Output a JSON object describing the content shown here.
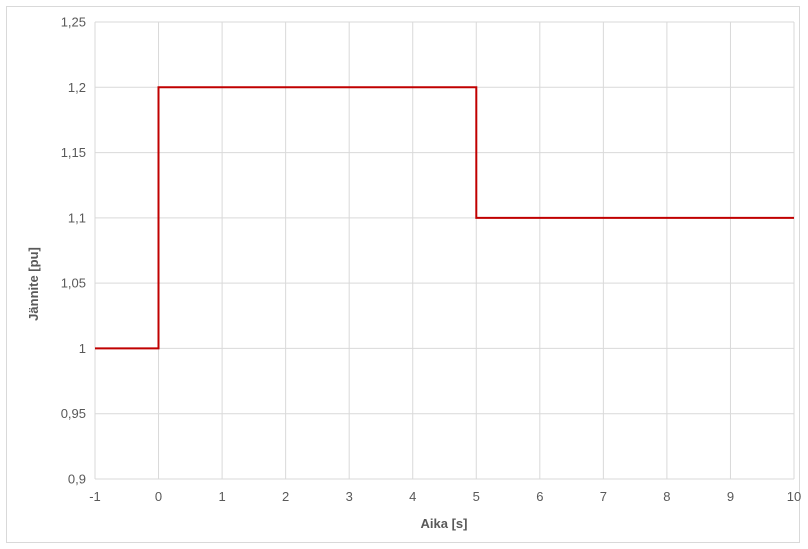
{
  "chart_data": {
    "type": "line",
    "xlabel": "Aika [s]",
    "ylabel": "Jännite [pu]",
    "xlim": [
      -1,
      10
    ],
    "ylim": [
      0.9,
      1.25
    ],
    "x_ticks": [
      {
        "value": -1,
        "label": "-1"
      },
      {
        "value": 0,
        "label": "0"
      },
      {
        "value": 1,
        "label": "1"
      },
      {
        "value": 2,
        "label": "2"
      },
      {
        "value": 3,
        "label": "3"
      },
      {
        "value": 4,
        "label": "4"
      },
      {
        "value": 5,
        "label": "5"
      },
      {
        "value": 6,
        "label": "6"
      },
      {
        "value": 7,
        "label": "7"
      },
      {
        "value": 8,
        "label": "8"
      },
      {
        "value": 9,
        "label": "9"
      },
      {
        "value": 10,
        "label": "10"
      }
    ],
    "y_ticks": [
      {
        "value": 0.9,
        "label": "0,9"
      },
      {
        "value": 0.95,
        "label": "0,95"
      },
      {
        "value": 1.0,
        "label": "1"
      },
      {
        "value": 1.05,
        "label": "1,05"
      },
      {
        "value": 1.1,
        "label": "1,1"
      },
      {
        "value": 1.15,
        "label": "1,15"
      },
      {
        "value": 1.2,
        "label": "1,2"
      },
      {
        "value": 1.25,
        "label": "1,25"
      }
    ],
    "grid": true,
    "legend": "none",
    "series": [
      {
        "color": "#c00000",
        "x": [
          -1,
          0,
          0,
          5,
          5,
          10
        ],
        "y": [
          1.0,
          1.0,
          1.2,
          1.2,
          1.1,
          1.1
        ]
      }
    ]
  }
}
